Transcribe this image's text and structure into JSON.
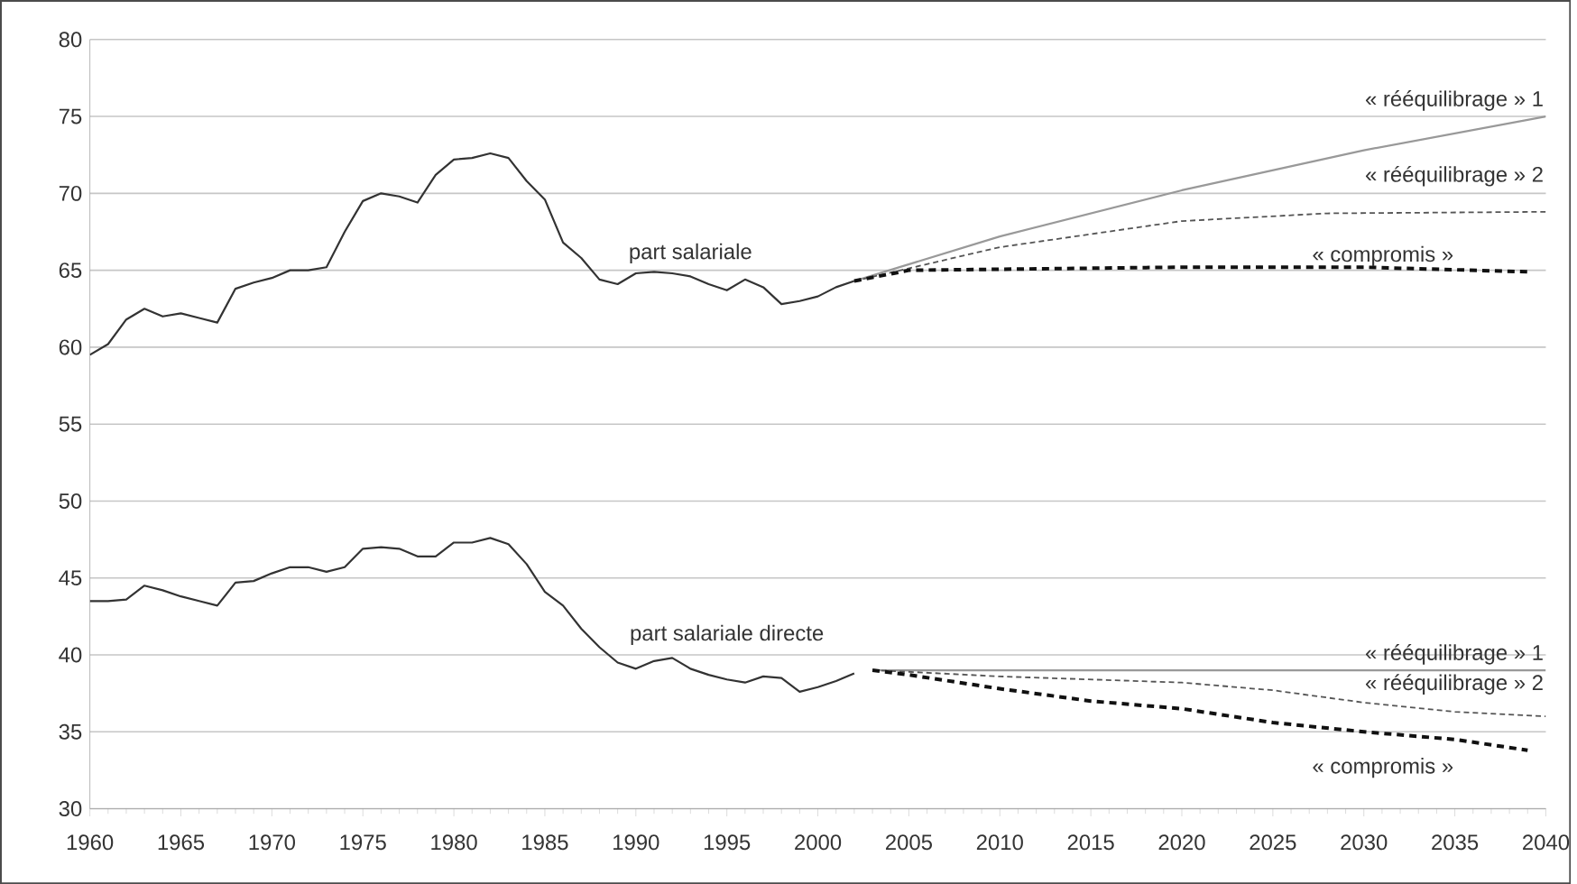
{
  "chart_data": {
    "type": "line",
    "xlim": [
      1960,
      2040
    ],
    "ylim": [
      30,
      80
    ],
    "xticks": [
      1960,
      1965,
      1970,
      1975,
      1980,
      1985,
      1990,
      1995,
      2000,
      2005,
      2010,
      2015,
      2020,
      2025,
      2030,
      2035,
      2040
    ],
    "yticks": [
      30,
      35,
      40,
      45,
      50,
      55,
      60,
      65,
      70,
      75,
      80
    ],
    "grid": "y",
    "legend": false,
    "marker": "none",
    "series": [
      {
        "name": "part salariale",
        "color": "#333333",
        "line_style": "solid",
        "x": [
          1960,
          1961,
          1962,
          1963,
          1964,
          1965,
          1966,
          1967,
          1968,
          1969,
          1970,
          1971,
          1972,
          1973,
          1974,
          1975,
          1976,
          1977,
          1978,
          1979,
          1980,
          1981,
          1982,
          1983,
          1984,
          1985,
          1986,
          1987,
          1988,
          1989,
          1990,
          1991,
          1992,
          1993,
          1994,
          1995,
          1996,
          1997,
          1998,
          1999,
          2000,
          2001,
          2002
        ],
        "values": [
          59.5,
          60.2,
          61.8,
          62.5,
          62.0,
          62.2,
          61.9,
          61.6,
          63.8,
          64.2,
          64.5,
          65.0,
          65.0,
          65.2,
          67.5,
          69.5,
          70.0,
          69.8,
          69.4,
          71.2,
          72.2,
          72.3,
          72.6,
          72.3,
          70.8,
          69.6,
          66.8,
          65.8,
          64.4,
          64.1,
          64.8,
          64.9,
          64.8,
          64.6,
          64.1,
          63.7,
          64.4,
          63.9,
          62.8,
          63.0,
          63.3,
          63.9,
          64.3
        ]
      },
      {
        "name": "« rééquilibrage » 1",
        "color": "#999999",
        "line_style": "solid",
        "x": [
          2002,
          2010,
          2020,
          2030,
          2040
        ],
        "values": [
          64.3,
          67.2,
          70.2,
          72.8,
          75.0
        ]
      },
      {
        "name": "« rééquilibrage » 2",
        "color": "#555555",
        "line_style": "dashed",
        "x": [
          2002,
          2010,
          2020,
          2028,
          2040
        ],
        "values": [
          64.3,
          66.5,
          68.2,
          68.7,
          68.8
        ]
      },
      {
        "name": "« compromis »",
        "color": "#111111",
        "line_style": "dotted",
        "x": [
          2002,
          2005,
          2020,
          2030,
          2039
        ],
        "values": [
          64.3,
          65.0,
          65.2,
          65.2,
          64.9
        ]
      },
      {
        "name": "part salariale directe",
        "color": "#333333",
        "line_style": "solid",
        "x": [
          1960,
          1961,
          1962,
          1963,
          1964,
          1965,
          1966,
          1967,
          1968,
          1969,
          1970,
          1971,
          1972,
          1973,
          1974,
          1975,
          1976,
          1977,
          1978,
          1979,
          1980,
          1981,
          1982,
          1983,
          1984,
          1985,
          1986,
          1987,
          1988,
          1989,
          1990,
          1991,
          1992,
          1993,
          1994,
          1995,
          1996,
          1997,
          1998,
          1999,
          2000,
          2001,
          2002
        ],
        "values": [
          43.5,
          43.5,
          43.6,
          44.5,
          44.2,
          43.8,
          43.5,
          43.2,
          44.7,
          44.8,
          45.3,
          45.7,
          45.7,
          45.4,
          45.7,
          46.9,
          47.0,
          46.9,
          46.4,
          46.4,
          47.3,
          47.3,
          47.6,
          47.2,
          45.9,
          44.1,
          43.2,
          41.7,
          40.5,
          39.5,
          39.1,
          39.6,
          39.8,
          39.1,
          38.7,
          38.4,
          38.2,
          38.6,
          38.5,
          37.6,
          37.9,
          38.3,
          38.8
        ]
      },
      {
        "name": "« rééquilibrage » 1",
        "color": "#999999",
        "line_style": "solid",
        "x": [
          2003,
          2040
        ],
        "values": [
          39.0,
          39.0
        ]
      },
      {
        "name": "« rééquilibrage » 2",
        "color": "#555555",
        "line_style": "dashed",
        "x": [
          2003,
          2005,
          2010,
          2020,
          2025,
          2030,
          2035,
          2040
        ],
        "values": [
          39.0,
          38.9,
          38.6,
          38.2,
          37.7,
          36.9,
          36.3,
          36.0
        ]
      },
      {
        "name": "« compromis »",
        "color": "#111111",
        "line_style": "dotted",
        "x": [
          2003,
          2005,
          2010,
          2015,
          2020,
          2025,
          2030,
          2035,
          2039
        ],
        "values": [
          39.0,
          38.7,
          37.8,
          37.0,
          36.5,
          35.6,
          35.0,
          34.5,
          33.8
        ]
      }
    ]
  }
}
